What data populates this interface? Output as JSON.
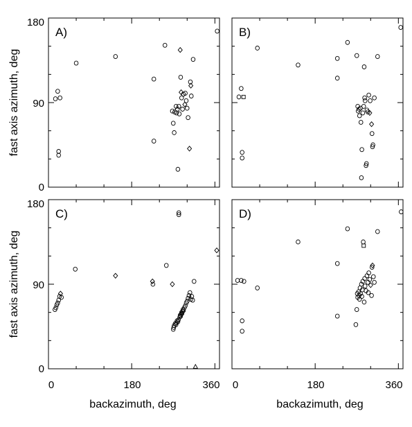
{
  "chart_data": [
    {
      "type": "scatter",
      "panel": "A)",
      "xlabel": "",
      "ylabel": "fast axis azimuth, deg",
      "xlim": [
        0,
        370
      ],
      "ylim": [
        0,
        180
      ],
      "xticks": [
        0,
        180,
        360
      ],
      "xticklabels": [
        "",
        "",
        ""
      ],
      "yticks": [
        0,
        90,
        180
      ],
      "yticklabels": [
        "0",
        "90",
        "180"
      ],
      "grid": false,
      "points": [
        {
          "x": 15,
          "y": 94,
          "m": "o"
        },
        {
          "x": 20,
          "y": 102,
          "m": "o"
        },
        {
          "x": 25,
          "y": 95,
          "m": "o"
        },
        {
          "x": 22,
          "y": 38,
          "m": "o"
        },
        {
          "x": 22,
          "y": 34,
          "m": "o"
        },
        {
          "x": 60,
          "y": 132,
          "m": "o"
        },
        {
          "x": 145,
          "y": 139,
          "m": "o"
        },
        {
          "x": 228,
          "y": 115,
          "m": "o"
        },
        {
          "x": 228,
          "y": 49,
          "m": "o"
        },
        {
          "x": 252,
          "y": 151,
          "m": "o"
        },
        {
          "x": 268,
          "y": 81,
          "m": "o"
        },
        {
          "x": 270,
          "y": 68,
          "m": "o"
        },
        {
          "x": 272,
          "y": 58,
          "m": "o"
        },
        {
          "x": 273,
          "y": 80,
          "m": "o"
        },
        {
          "x": 276,
          "y": 86,
          "m": "o"
        },
        {
          "x": 277,
          "y": 79,
          "m": "o"
        },
        {
          "x": 279,
          "y": 83,
          "m": "o"
        },
        {
          "x": 280,
          "y": 19,
          "m": "o"
        },
        {
          "x": 282,
          "y": 86,
          "m": "o"
        },
        {
          "x": 283,
          "y": 78,
          "m": "o"
        },
        {
          "x": 285,
          "y": 146,
          "m": "d"
        },
        {
          "x": 286,
          "y": 117,
          "m": "o"
        },
        {
          "x": 287,
          "y": 101,
          "m": "d"
        },
        {
          "x": 288,
          "y": 95,
          "m": "o"
        },
        {
          "x": 290,
          "y": 83,
          "m": "o"
        },
        {
          "x": 292,
          "y": 99,
          "m": "o"
        },
        {
          "x": 295,
          "y": 88,
          "m": "d"
        },
        {
          "x": 296,
          "y": 100,
          "m": "o"
        },
        {
          "x": 298,
          "y": 92,
          "m": "o"
        },
        {
          "x": 300,
          "y": 84,
          "m": "o"
        },
        {
          "x": 302,
          "y": 74,
          "m": "o"
        },
        {
          "x": 305,
          "y": 41,
          "m": "d"
        },
        {
          "x": 307,
          "y": 112,
          "m": "o"
        },
        {
          "x": 308,
          "y": 108,
          "m": "d"
        },
        {
          "x": 309,
          "y": 97,
          "m": "o"
        },
        {
          "x": 313,
          "y": 136,
          "m": "o"
        },
        {
          "x": 365,
          "y": 166,
          "m": "o"
        }
      ]
    },
    {
      "type": "scatter",
      "panel": "B)",
      "xlabel": "",
      "ylabel": "",
      "xlim": [
        0,
        370
      ],
      "ylim": [
        0,
        180
      ],
      "xticks": [
        0,
        180,
        360
      ],
      "xticklabels": [
        "",
        "",
        ""
      ],
      "yticks": [
        0,
        90,
        180
      ],
      "yticklabels": [
        "",
        "",
        ""
      ],
      "grid": false,
      "points": [
        {
          "x": 15,
          "y": 96,
          "m": "o"
        },
        {
          "x": 20,
          "y": 105,
          "m": "o"
        },
        {
          "x": 25,
          "y": 96,
          "m": "s"
        },
        {
          "x": 22,
          "y": 37,
          "m": "o"
        },
        {
          "x": 22,
          "y": 31,
          "m": "o"
        },
        {
          "x": 55,
          "y": 148,
          "m": "o"
        },
        {
          "x": 143,
          "y": 130,
          "m": "o"
        },
        {
          "x": 228,
          "y": 137,
          "m": "o"
        },
        {
          "x": 228,
          "y": 116,
          "m": "o"
        },
        {
          "x": 250,
          "y": 154,
          "m": "o"
        },
        {
          "x": 270,
          "y": 140,
          "m": "o"
        },
        {
          "x": 272,
          "y": 86,
          "m": "o"
        },
        {
          "x": 273,
          "y": 81,
          "m": "o"
        },
        {
          "x": 275,
          "y": 83,
          "m": "o"
        },
        {
          "x": 276,
          "y": 76,
          "m": "o"
        },
        {
          "x": 278,
          "y": 84,
          "m": "o"
        },
        {
          "x": 279,
          "y": 69,
          "m": "o"
        },
        {
          "x": 280,
          "y": 10,
          "m": "o"
        },
        {
          "x": 281,
          "y": 40,
          "m": "o"
        },
        {
          "x": 283,
          "y": 79,
          "m": "o"
        },
        {
          "x": 285,
          "y": 86,
          "m": "o"
        },
        {
          "x": 286,
          "y": 128,
          "m": "o"
        },
        {
          "x": 287,
          "y": 95,
          "m": "o"
        },
        {
          "x": 288,
          "y": 92,
          "m": "o"
        },
        {
          "x": 290,
          "y": 23,
          "m": "o"
        },
        {
          "x": 291,
          "y": 25,
          "m": "o"
        },
        {
          "x": 292,
          "y": 82,
          "m": "o"
        },
        {
          "x": 294,
          "y": 80,
          "m": "o"
        },
        {
          "x": 296,
          "y": 98,
          "m": "o"
        },
        {
          "x": 298,
          "y": 79,
          "m": "d"
        },
        {
          "x": 299,
          "y": 92,
          "m": "o"
        },
        {
          "x": 302,
          "y": 67,
          "m": "d"
        },
        {
          "x": 303,
          "y": 57,
          "m": "o"
        },
        {
          "x": 304,
          "y": 43,
          "m": "o"
        },
        {
          "x": 305,
          "y": 45,
          "m": "o"
        },
        {
          "x": 308,
          "y": 95,
          "m": "o"
        },
        {
          "x": 315,
          "y": 139,
          "m": "o"
        },
        {
          "x": 365,
          "y": 170,
          "m": "o"
        }
      ]
    },
    {
      "type": "scatter",
      "panel": "C)",
      "xlabel": "backazimuth, deg",
      "ylabel": "fast axis azimuth, deg",
      "xlim": [
        0,
        370
      ],
      "ylim": [
        0,
        180
      ],
      "xticks": [
        0,
        180,
        360
      ],
      "xticklabels": [
        "0",
        "180",
        "360"
      ],
      "yticks": [
        0,
        90,
        180
      ],
      "yticklabels": [
        "0",
        "90",
        "180"
      ],
      "grid": false,
      "points": [
        {
          "x": 14,
          "y": 63,
          "m": "o"
        },
        {
          "x": 16,
          "y": 65,
          "m": "o"
        },
        {
          "x": 18,
          "y": 68,
          "m": "o"
        },
        {
          "x": 20,
          "y": 70,
          "m": "o"
        },
        {
          "x": 22,
          "y": 73,
          "m": "o"
        },
        {
          "x": 24,
          "y": 77,
          "m": "o"
        },
        {
          "x": 26,
          "y": 80,
          "m": "d"
        },
        {
          "x": 28,
          "y": 76,
          "m": "o"
        },
        {
          "x": 58,
          "y": 106,
          "m": "o"
        },
        {
          "x": 145,
          "y": 99,
          "m": "d"
        },
        {
          "x": 225,
          "y": 93,
          "m": "d"
        },
        {
          "x": 226,
          "y": 90,
          "m": "o"
        },
        {
          "x": 255,
          "y": 110,
          "m": "o"
        },
        {
          "x": 268,
          "y": 90,
          "m": "d"
        },
        {
          "x": 270,
          "y": 42,
          "m": "o"
        },
        {
          "x": 271,
          "y": 44,
          "m": "o"
        },
        {
          "x": 272,
          "y": 46,
          "m": "o"
        },
        {
          "x": 274,
          "y": 48,
          "m": "o"
        },
        {
          "x": 276,
          "y": 47,
          "m": "o"
        },
        {
          "x": 277,
          "y": 49,
          "m": "o"
        },
        {
          "x": 278,
          "y": 51,
          "m": "o"
        },
        {
          "x": 280,
          "y": 50,
          "m": "o"
        },
        {
          "x": 281,
          "y": 52,
          "m": "o"
        },
        {
          "x": 282,
          "y": 166,
          "m": "o"
        },
        {
          "x": 282,
          "y": 164,
          "m": "o"
        },
        {
          "x": 284,
          "y": 55,
          "m": "o"
        },
        {
          "x": 285,
          "y": 57,
          "m": "o"
        },
        {
          "x": 286,
          "y": 56,
          "m": "o"
        },
        {
          "x": 287,
          "y": 58,
          "m": "o"
        },
        {
          "x": 288,
          "y": 60,
          "m": "o"
        },
        {
          "x": 289,
          "y": 59,
          "m": "o"
        },
        {
          "x": 290,
          "y": 61,
          "m": "o"
        },
        {
          "x": 291,
          "y": 63,
          "m": "o"
        },
        {
          "x": 292,
          "y": 62,
          "m": "o"
        },
        {
          "x": 294,
          "y": 65,
          "m": "o"
        },
        {
          "x": 296,
          "y": 67,
          "m": "o"
        },
        {
          "x": 298,
          "y": 70,
          "m": "o"
        },
        {
          "x": 300,
          "y": 72,
          "m": "o"
        },
        {
          "x": 302,
          "y": 75,
          "m": "o"
        },
        {
          "x": 304,
          "y": 78,
          "m": "o"
        },
        {
          "x": 306,
          "y": 81,
          "m": "o"
        },
        {
          "x": 308,
          "y": 74,
          "m": "o"
        },
        {
          "x": 310,
          "y": 77,
          "m": "o"
        },
        {
          "x": 312,
          "y": 73,
          "m": "o"
        },
        {
          "x": 315,
          "y": 93,
          "m": "o"
        },
        {
          "x": 318,
          "y": 2,
          "m": "t"
        },
        {
          "x": 364,
          "y": 126,
          "m": "d"
        }
      ]
    },
    {
      "type": "scatter",
      "panel": "D)",
      "xlabel": "backazimuth, deg",
      "ylabel": "",
      "xlim": [
        0,
        370
      ],
      "ylim": [
        0,
        180
      ],
      "xticks": [
        0,
        180,
        360
      ],
      "xticklabels": [
        "0",
        "180",
        "360"
      ],
      "yticks": [
        0,
        90,
        180
      ],
      "yticklabels": [
        "",
        "",
        ""
      ],
      "grid": false,
      "points": [
        {
          "x": 12,
          "y": 94,
          "m": "o"
        },
        {
          "x": 20,
          "y": 94,
          "m": "o"
        },
        {
          "x": 26,
          "y": 93,
          "m": "o"
        },
        {
          "x": 22,
          "y": 51,
          "m": "o"
        },
        {
          "x": 22,
          "y": 40,
          "m": "o"
        },
        {
          "x": 55,
          "y": 86,
          "m": "o"
        },
        {
          "x": 143,
          "y": 135,
          "m": "o"
        },
        {
          "x": 228,
          "y": 56,
          "m": "o"
        },
        {
          "x": 228,
          "y": 112,
          "m": "o"
        },
        {
          "x": 250,
          "y": 149,
          "m": "o"
        },
        {
          "x": 268,
          "y": 47,
          "m": "o"
        },
        {
          "x": 270,
          "y": 63,
          "m": "o"
        },
        {
          "x": 271,
          "y": 80,
          "m": "o"
        },
        {
          "x": 272,
          "y": 76,
          "m": "o"
        },
        {
          "x": 274,
          "y": 82,
          "m": "o"
        },
        {
          "x": 275,
          "y": 78,
          "m": "o"
        },
        {
          "x": 276,
          "y": 74,
          "m": "o"
        },
        {
          "x": 277,
          "y": 86,
          "m": "o"
        },
        {
          "x": 278,
          "y": 80,
          "m": "o"
        },
        {
          "x": 280,
          "y": 90,
          "m": "o"
        },
        {
          "x": 281,
          "y": 77,
          "m": "o"
        },
        {
          "x": 282,
          "y": 84,
          "m": "o"
        },
        {
          "x": 283,
          "y": 93,
          "m": "o"
        },
        {
          "x": 284,
          "y": 135,
          "m": "o"
        },
        {
          "x": 285,
          "y": 131,
          "m": "s"
        },
        {
          "x": 286,
          "y": 71,
          "m": "o"
        },
        {
          "x": 287,
          "y": 96,
          "m": "o"
        },
        {
          "x": 288,
          "y": 88,
          "m": "o"
        },
        {
          "x": 290,
          "y": 83,
          "m": "o"
        },
        {
          "x": 292,
          "y": 99,
          "m": "o"
        },
        {
          "x": 294,
          "y": 92,
          "m": "o"
        },
        {
          "x": 295,
          "y": 81,
          "m": "o"
        },
        {
          "x": 296,
          "y": 102,
          "m": "o"
        },
        {
          "x": 298,
          "y": 95,
          "m": "o"
        },
        {
          "x": 300,
          "y": 89,
          "m": "d"
        },
        {
          "x": 302,
          "y": 78,
          "m": "o"
        },
        {
          "x": 303,
          "y": 108,
          "m": "o"
        },
        {
          "x": 304,
          "y": 110,
          "m": "d"
        },
        {
          "x": 306,
          "y": 98,
          "m": "o"
        },
        {
          "x": 308,
          "y": 92,
          "m": "o"
        },
        {
          "x": 315,
          "y": 146,
          "m": "o"
        },
        {
          "x": 366,
          "y": 167,
          "m": "o"
        }
      ]
    }
  ]
}
